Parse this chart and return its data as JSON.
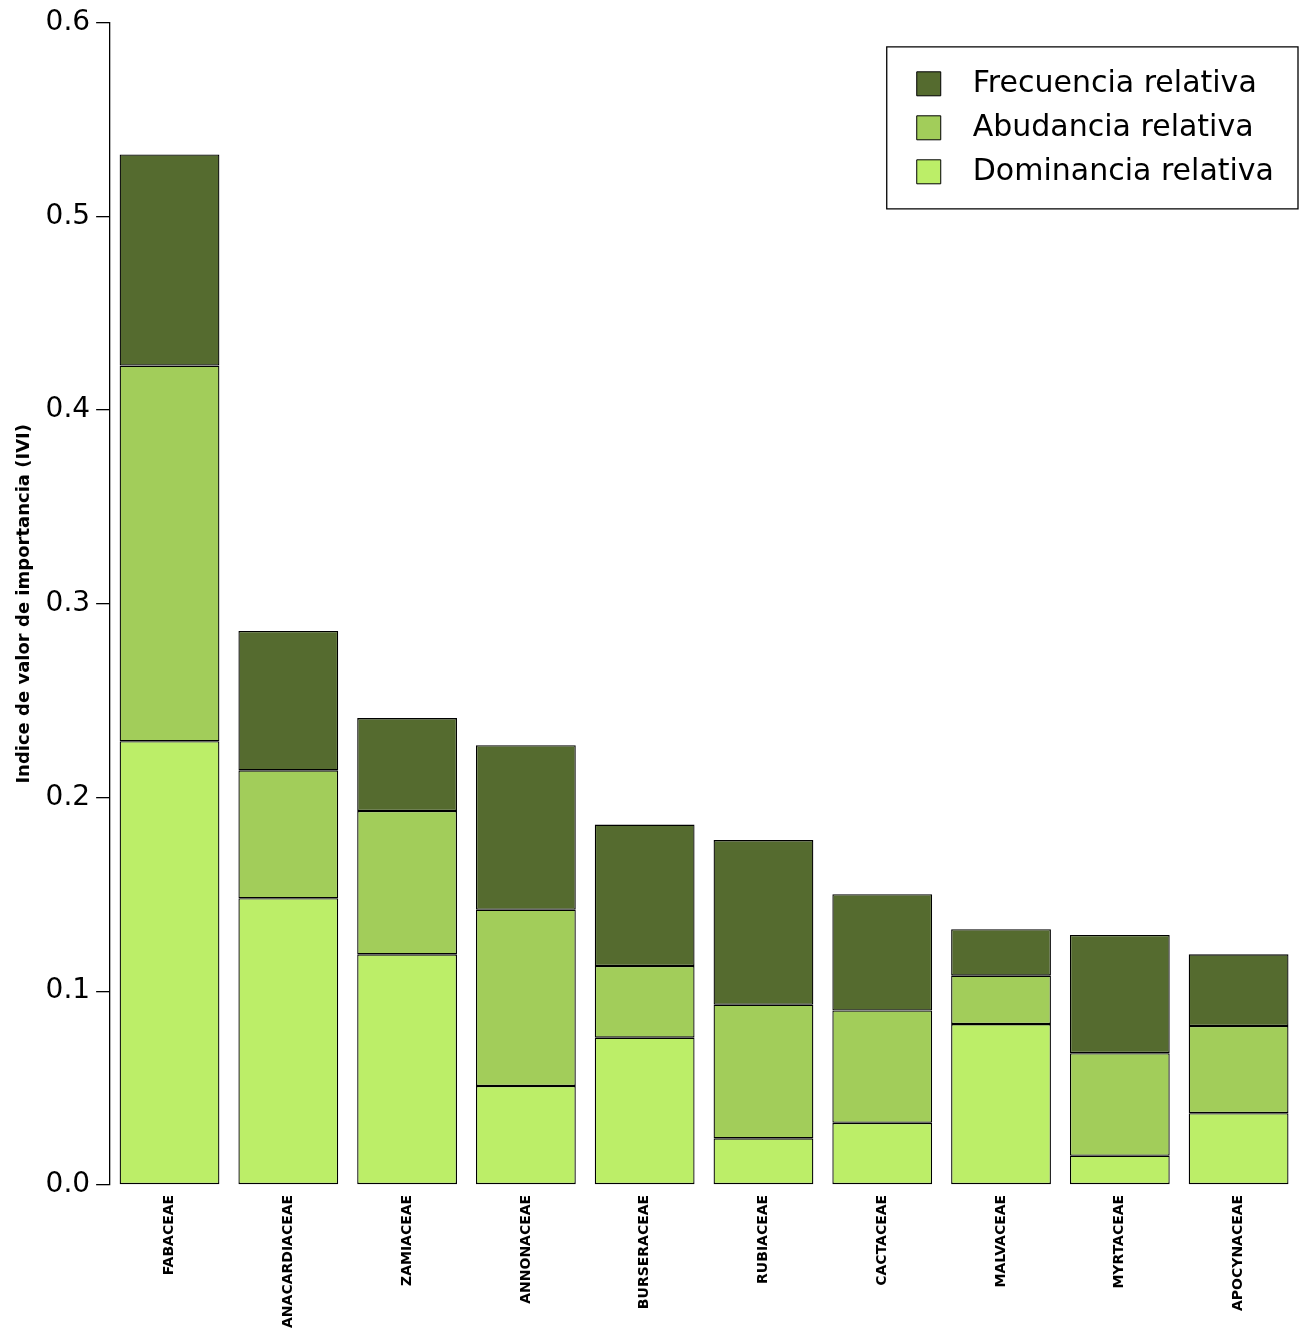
{
  "chart_data": {
    "type": "bar",
    "stacked": true,
    "ylabel": "Indice de valor de importancia (IVI)",
    "categories": [
      "FABACEAE",
      "ANACARDIACEAE",
      "ZAMIACEAE",
      "ANNONACEAE",
      "BURSERACEAE",
      "RUBIACEAE",
      "CACTACEAE",
      "MALVACEAE",
      "MYRTACEAE",
      "APOCYNACEAE"
    ],
    "series": [
      {
        "name": "Dominancia relativa",
        "color": "#bcee68",
        "values": [
          0.229,
          0.148,
          0.119,
          0.051,
          0.076,
          0.024,
          0.032,
          0.083,
          0.015,
          0.037
        ]
      },
      {
        "name": "Abudancia relativa",
        "color": "#a2cd5a",
        "values": [
          0.194,
          0.066,
          0.074,
          0.091,
          0.037,
          0.069,
          0.058,
          0.025,
          0.053,
          0.045
        ]
      },
      {
        "name": "Frecuencia relativa",
        "color": "#556b2f",
        "values": [
          0.109,
          0.072,
          0.048,
          0.085,
          0.073,
          0.085,
          0.06,
          0.024,
          0.061,
          0.037
        ]
      }
    ],
    "ylim": [
      0,
      0.6
    ],
    "yticks": [
      {
        "value": 0,
        "label": "0.0"
      },
      0.1,
      0.2,
      0.3,
      0.4,
      0.5,
      0.6
    ],
    "grid": false,
    "legend": "top right"
  }
}
